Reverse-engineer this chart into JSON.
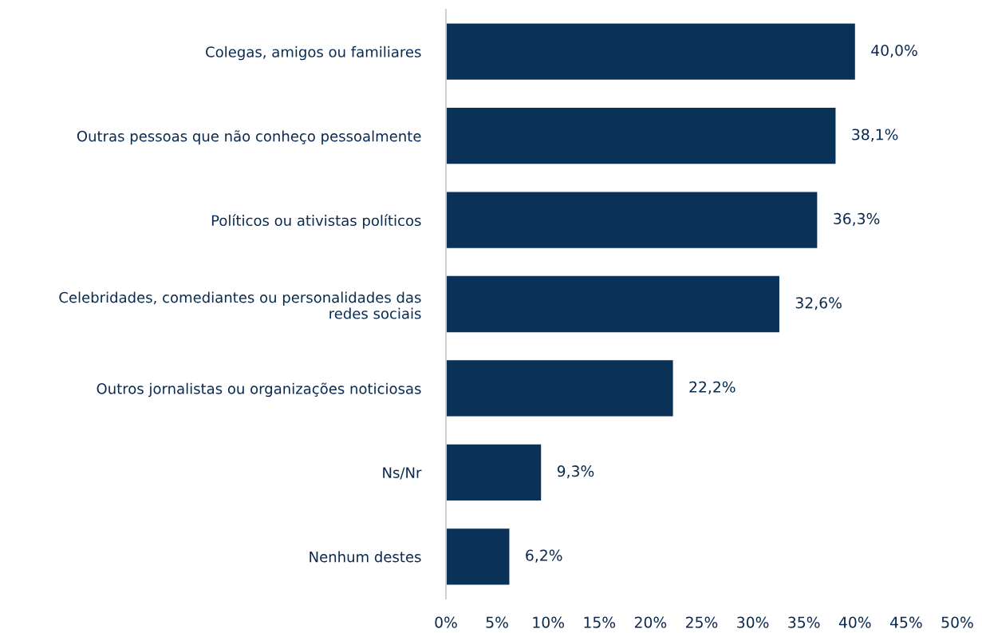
{
  "chart_data": {
    "type": "bar",
    "orientation": "horizontal",
    "categories": [
      "Colegas, amigos ou familiares",
      "Outras pessoas que não conheço pessoalmente",
      "Políticos ou ativistas políticos",
      "Celebridades, comediantes ou personalidades das\nredes sociais",
      "Outros jornalistas ou organizações noticiosas",
      "Ns/Nr",
      "Nenhum destes"
    ],
    "values": [
      40.0,
      38.1,
      36.3,
      32.6,
      22.2,
      9.3,
      6.2
    ],
    "value_labels": [
      "40,0%",
      "38,1%",
      "36,3%",
      "32,6%",
      "22,2%",
      "9,3%",
      "6,2%"
    ],
    "color": "#0a3158",
    "xlim": [
      0,
      50
    ],
    "xticks": [
      {
        "value": 0,
        "label": "0%"
      },
      {
        "value": 5,
        "label": "5%"
      },
      {
        "value": 10,
        "label": "10%"
      },
      {
        "value": 15,
        "label": "15%"
      },
      {
        "value": 20,
        "label": "20%"
      },
      {
        "value": 25,
        "label": "25%"
      },
      {
        "value": 30,
        "label": "30%"
      },
      {
        "value": 35,
        "label": "35%"
      },
      {
        "value": 40,
        "label": "40%"
      },
      {
        "value": 45,
        "label": "45%"
      },
      {
        "value": 50,
        "label": "50%"
      }
    ],
    "grid": false
  }
}
